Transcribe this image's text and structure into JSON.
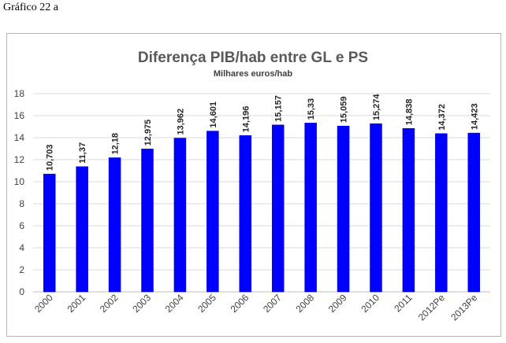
{
  "caption": "Gráfico 22 a",
  "colors": {
    "bar": "#0000ff",
    "bar_stroke": "#0000cc",
    "grid": "#d9d9d9",
    "axis": "#bfbfbf"
  },
  "chart_data": {
    "type": "bar",
    "title": "Diferença PIB/hab entre GL e PS",
    "subtitle": "Milhares euros/hab",
    "xlabel": "",
    "ylabel": "",
    "ylim": [
      0,
      18
    ],
    "yticks": [
      "0",
      "2",
      "4",
      "6",
      "8",
      "10",
      "12",
      "14",
      "16",
      "18"
    ],
    "grid": true,
    "categories": [
      "2000",
      "2001",
      "2002",
      "2003",
      "2004",
      "2005",
      "2006",
      "2007",
      "2008",
      "2009",
      "2010",
      "2011",
      "2012Pe",
      "2013Pe"
    ],
    "values": [
      10.703,
      11.37,
      12.18,
      12.975,
      13.962,
      14.601,
      14.196,
      15.157,
      15.33,
      15.059,
      15.274,
      14.838,
      14.372,
      14.423
    ],
    "data_labels": [
      "10,703",
      "11,37",
      "12,18",
      "12,975",
      "13,962",
      "14,601",
      "14,196",
      "15,157",
      "15,33",
      "15,059",
      "15,274",
      "14,838",
      "14,372",
      "14,423"
    ]
  }
}
